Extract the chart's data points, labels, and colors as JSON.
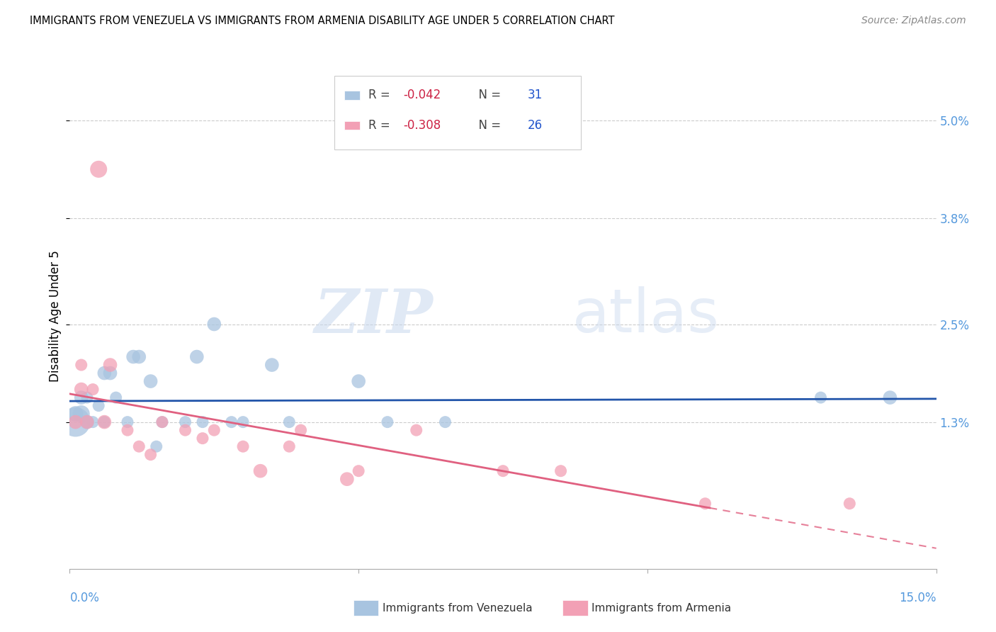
{
  "title": "IMMIGRANTS FROM VENEZUELA VS IMMIGRANTS FROM ARMENIA DISABILITY AGE UNDER 5 CORRELATION CHART",
  "source": "Source: ZipAtlas.com",
  "ylabel": "Disability Age Under 5",
  "y_tick_labels": [
    "1.3%",
    "2.5%",
    "3.8%",
    "5.0%"
  ],
  "y_tick_values": [
    0.013,
    0.025,
    0.038,
    0.05
  ],
  "xlim": [
    0.0,
    0.15
  ],
  "ylim": [
    -0.005,
    0.057
  ],
  "watermark_zip": "ZIP",
  "watermark_atlas": "atlas",
  "venezuela_color": "#a8c4e0",
  "armenia_color": "#f2a0b5",
  "venezuela_line_color": "#2255aa",
  "armenia_line_color": "#e06080",
  "r_venezuela": "-0.042",
  "n_venezuela": "31",
  "r_armenia": "-0.308",
  "n_armenia": "26",
  "legend_text_color": "#333333",
  "legend_value_color": "#cc3355",
  "legend_n_color": "#2255cc",
  "venezuela_points_x": [
    0.001,
    0.001,
    0.002,
    0.002,
    0.003,
    0.003,
    0.004,
    0.005,
    0.006,
    0.006,
    0.007,
    0.008,
    0.01,
    0.011,
    0.012,
    0.014,
    0.015,
    0.016,
    0.02,
    0.022,
    0.023,
    0.025,
    0.028,
    0.03,
    0.035,
    0.038,
    0.05,
    0.055,
    0.065,
    0.13,
    0.142
  ],
  "venezuela_points_y": [
    0.013,
    0.014,
    0.014,
    0.016,
    0.013,
    0.016,
    0.013,
    0.015,
    0.013,
    0.019,
    0.019,
    0.016,
    0.013,
    0.021,
    0.021,
    0.018,
    0.01,
    0.013,
    0.013,
    0.021,
    0.013,
    0.025,
    0.013,
    0.013,
    0.02,
    0.013,
    0.018,
    0.013,
    0.013,
    0.016,
    0.016
  ],
  "venezuela_sizes": [
    900,
    250,
    300,
    200,
    200,
    150,
    150,
    150,
    150,
    200,
    200,
    150,
    150,
    200,
    200,
    200,
    150,
    150,
    150,
    200,
    150,
    200,
    150,
    150,
    200,
    150,
    200,
    150,
    150,
    150,
    200
  ],
  "armenia_points_x": [
    0.001,
    0.002,
    0.002,
    0.003,
    0.004,
    0.005,
    0.006,
    0.007,
    0.01,
    0.012,
    0.014,
    0.016,
    0.02,
    0.023,
    0.025,
    0.03,
    0.033,
    0.038,
    0.04,
    0.048,
    0.05,
    0.06,
    0.075,
    0.085,
    0.11,
    0.135
  ],
  "armenia_points_y": [
    0.013,
    0.02,
    0.017,
    0.013,
    0.017,
    0.044,
    0.013,
    0.02,
    0.012,
    0.01,
    0.009,
    0.013,
    0.012,
    0.011,
    0.012,
    0.01,
    0.007,
    0.01,
    0.012,
    0.006,
    0.007,
    0.012,
    0.007,
    0.007,
    0.003,
    0.003
  ],
  "armenia_sizes": [
    200,
    150,
    200,
    200,
    150,
    300,
    200,
    200,
    150,
    150,
    150,
    150,
    150,
    150,
    150,
    150,
    200,
    150,
    150,
    200,
    150,
    150,
    150,
    150,
    150,
    150
  ]
}
